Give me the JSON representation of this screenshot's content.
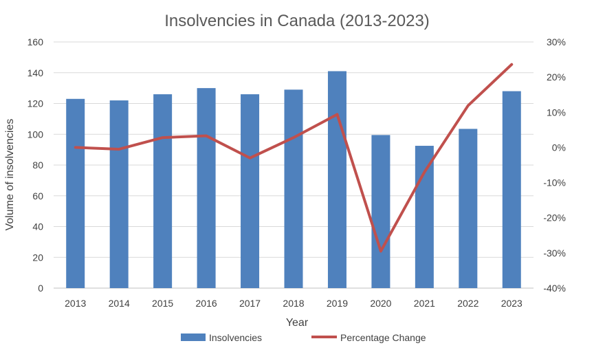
{
  "chart_data": {
    "type": "bar",
    "title": "Insolvencies in Canada (2013-2023)",
    "xlabel": "Year",
    "ylabel": "Volume of insolvencies",
    "categories": [
      "2013",
      "2014",
      "2015",
      "2016",
      "2017",
      "2018",
      "2019",
      "2020",
      "2021",
      "2022",
      "2023"
    ],
    "series": [
      {
        "name": "Insolvencies",
        "type": "bar",
        "axis": "left",
        "color": "#4F81BD",
        "values": [
          123,
          122,
          126,
          130,
          126,
          129,
          141,
          99.5,
          92.5,
          103.5,
          128
        ]
      },
      {
        "name": "Percentage Change",
        "type": "line",
        "axis": "right",
        "color": "#C0504D",
        "values": [
          0,
          -0.5,
          2.8,
          3.3,
          -3.0,
          2.8,
          9.4,
          -29.5,
          -7.0,
          11.9,
          23.6
        ]
      }
    ],
    "ylim": [
      0,
      160
    ],
    "yticks": [
      "0",
      "20",
      "40",
      "60",
      "80",
      "100",
      "120",
      "140",
      "160"
    ],
    "y2lim": [
      -40,
      30
    ],
    "y2ticks": [
      "-40%",
      "-30%",
      "-20%",
      "-10%",
      "0%",
      "10%",
      "20%",
      "30%"
    ],
    "grid": true,
    "legend_position": "bottom"
  }
}
